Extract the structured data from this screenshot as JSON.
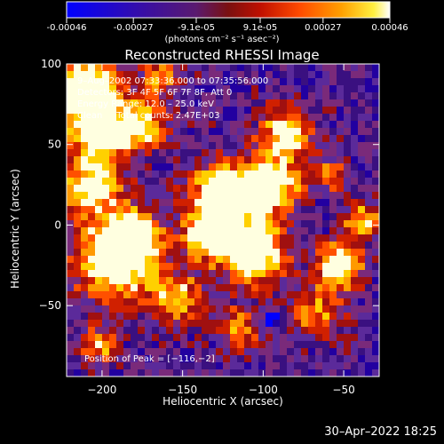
{
  "colorbar": {
    "tick_labels": [
      "-0.00046",
      "-0.00027",
      "-9.1e-05",
      "9.1e-05",
      "0.00027",
      "0.00046"
    ],
    "tick_values": [
      -0.00046,
      -0.00027,
      -9.1e-05,
      9.1e-05,
      0.00027,
      0.00046
    ],
    "units": "(photons cm⁻² s⁻¹ asec⁻²)",
    "range": [
      -0.00046,
      0.00046
    ]
  },
  "chart_data": {
    "type": "heatmap",
    "title": "Reconstructed RHESSI Image",
    "xlabel": "Heliocentric X (arcsec)",
    "ylabel": "Heliocentric Y (arcsec)",
    "xlim": [
      -222,
      -28
    ],
    "ylim": [
      -94,
      100
    ],
    "x_ticks": [
      -200,
      -150,
      -100,
      -50
    ],
    "y_ticks": [
      -50,
      0,
      50,
      100
    ],
    "x_tick_labels": [
      "−200",
      "−150",
      "−100",
      "−50"
    ],
    "y_tick_labels": [
      "−50",
      "0",
      "50",
      "100"
    ],
    "peak": [
      -116,
      -2
    ],
    "annotations": {
      "time": "9–Aug–2002 07:33:36.000 to 07:35:56.000",
      "detectors": "Detectors: 3F 4F 5F 6F 7F 8F, Att 0",
      "energy": "Energy Range: 12.0 – 25.0 keV",
      "clean": "Clean     Total counts: 2.47E+03",
      "peak_text": "Position of Peak = [−116,−2]"
    },
    "colormap": [
      "#0000ff",
      "#2200a0",
      "#3a1080",
      "#5b2a9a",
      "#7a2a7a",
      "#a01010",
      "#d02000",
      "#ff5000",
      "#ff9a00",
      "#ffd000",
      "#ffffe0"
    ]
  },
  "footer": {
    "timestamp": "30–Apr–2022 18:25"
  }
}
